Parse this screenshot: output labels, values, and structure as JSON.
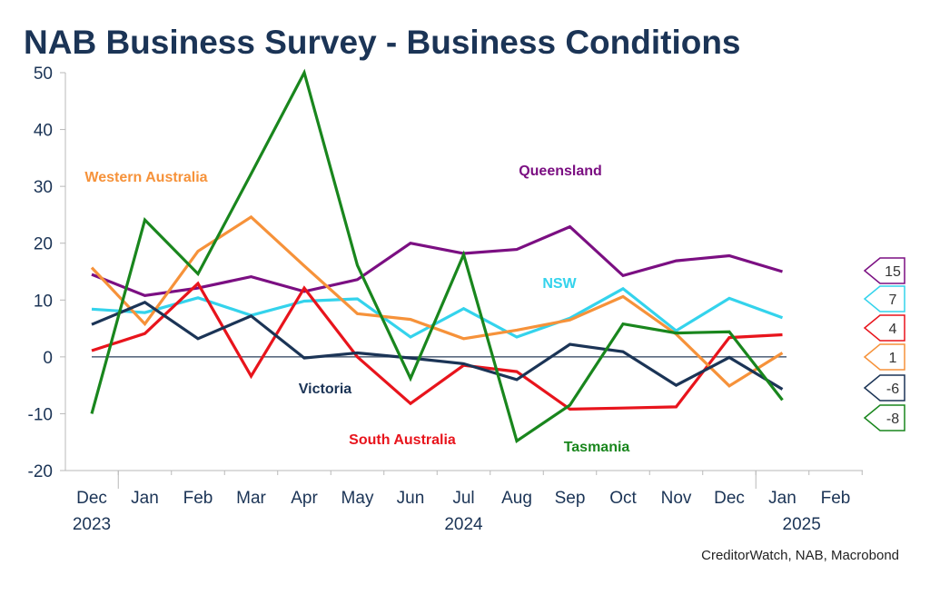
{
  "title": "NAB Business Survey - Business Conditions",
  "source": "CreditorWatch, NAB, Macrobond",
  "chart_data": {
    "type": "line",
    "x": [
      "Dec 2023",
      "Jan 2024",
      "Feb 2024",
      "Mar 2024",
      "Apr 2024",
      "May 2024",
      "Jun 2024",
      "Jul 2024",
      "Aug 2024",
      "Sep 2024",
      "Oct 2024",
      "Nov 2024",
      "Dec 2024",
      "Jan 2025"
    ],
    "x_tick_labels": [
      "Dec",
      "Jan",
      "Feb",
      "Mar",
      "Apr",
      "May",
      "Jun",
      "Jul",
      "Aug",
      "Sep",
      "Oct",
      "Nov",
      "Dec",
      "Jan",
      "Feb"
    ],
    "x_year_labels": [
      {
        "label": "2023",
        "under": "Dec"
      },
      {
        "label": "2024",
        "under": "Jul"
      },
      {
        "label": "2025",
        "under": "Jan"
      }
    ],
    "y_ticks": [
      50,
      40,
      30,
      20,
      10,
      0,
      -10,
      -20
    ],
    "ylim": [
      -20,
      50
    ],
    "grid": false,
    "series": [
      {
        "name": "Queensland",
        "color": "#7b0f82",
        "values": [
          14.5,
          10.8,
          12.1,
          14.1,
          11.5,
          13.6,
          20.0,
          18.2,
          18.9,
          22.9,
          14.3,
          16.9,
          17.8,
          15.0
        ],
        "end_value": "15"
      },
      {
        "name": "NSW",
        "color": "#34d3ec",
        "values": [
          8.4,
          7.8,
          10.4,
          7.3,
          9.8,
          10.2,
          3.5,
          8.5,
          3.5,
          6.8,
          12.0,
          4.6,
          10.3,
          6.9
        ],
        "end_value": "7"
      },
      {
        "name": "South Australia",
        "color": "#e8141c",
        "values": [
          1.1,
          4.1,
          12.9,
          -3.4,
          12.1,
          0.0,
          -8.2,
          -1.5,
          -2.6,
          -9.2,
          -9.0,
          -8.8,
          3.4,
          3.9
        ],
        "end_value": "4"
      },
      {
        "name": "Western Australia",
        "color": "#f6923a",
        "values": [
          15.7,
          5.8,
          18.6,
          24.6,
          16.0,
          7.6,
          6.6,
          3.2,
          4.7,
          6.5,
          10.6,
          4.0,
          -5.1,
          0.7
        ],
        "end_value": "1"
      },
      {
        "name": "Victoria",
        "color": "#1b3456",
        "values": [
          5.7,
          9.6,
          3.2,
          7.2,
          -0.2,
          0.7,
          -0.2,
          -1.2,
          -4.0,
          2.2,
          0.9,
          -5.0,
          -0.1,
          -5.7
        ],
        "end_value": "-6"
      },
      {
        "name": "Tasmania",
        "color": "#19861d",
        "values": [
          -10.0,
          24.1,
          14.6,
          32.2,
          50.0,
          16.1,
          -3.8,
          18.0,
          -14.8,
          -8.5,
          5.8,
          4.2,
          4.4,
          -7.6
        ],
        "end_value": "-8"
      }
    ]
  }
}
